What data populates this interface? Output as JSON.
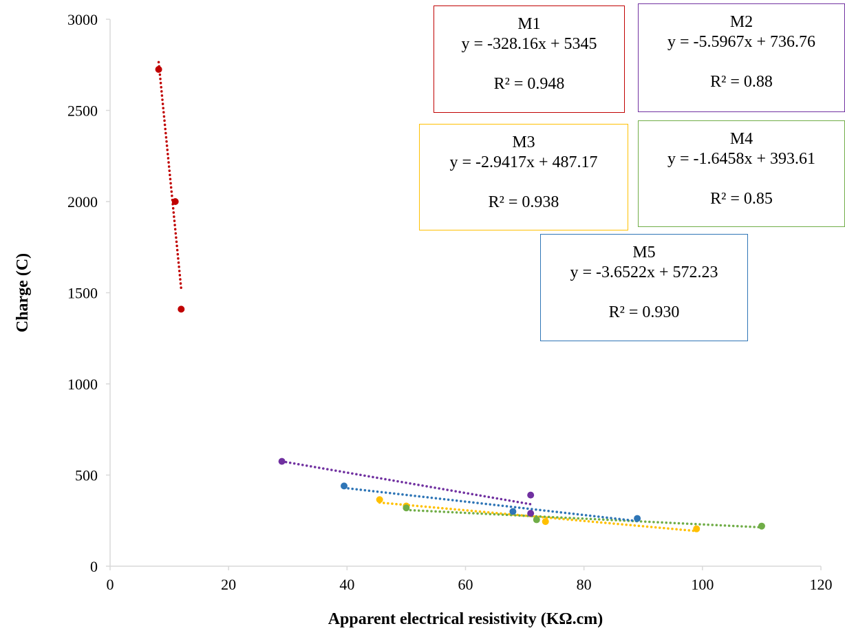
{
  "chart_data": {
    "type": "scatter",
    "title": "",
    "xlabel": "Apparent electrical resistivity (KΩ.cm)",
    "ylabel": "Charge  (C)",
    "xlim": [
      0,
      120
    ],
    "ylim": [
      0,
      3000
    ],
    "xticks": [
      "0",
      "20",
      "40",
      "60",
      "80",
      "100",
      "120"
    ],
    "yticks": [
      "0",
      "500",
      "1000",
      "1500",
      "2000",
      "2500",
      "3000"
    ],
    "grid": false,
    "legend": "none",
    "trendline": "dotted linear",
    "series": [
      {
        "id": "M1",
        "color": "#c00000",
        "points": [
          [
            8.2,
            2725
          ],
          [
            11,
            2000
          ],
          [
            12,
            1410
          ]
        ]
      },
      {
        "id": "M2",
        "color": "#7030a0",
        "points": [
          [
            29,
            575
          ],
          [
            71,
            390
          ],
          [
            71,
            290
          ]
        ]
      },
      {
        "id": "M3",
        "color": "#ffc000",
        "points": [
          [
            45.5,
            365
          ],
          [
            50,
            330
          ],
          [
            73.5,
            245
          ],
          [
            99,
            205
          ]
        ]
      },
      {
        "id": "M4",
        "color": "#70ad47",
        "points": [
          [
            50,
            320
          ],
          [
            72,
            255
          ],
          [
            110,
            220
          ]
        ]
      },
      {
        "id": "M5",
        "color": "#2e75b6",
        "points": [
          [
            39.5,
            440
          ],
          [
            68,
            300
          ],
          [
            89,
            262
          ]
        ]
      }
    ],
    "annotations": [
      {
        "series": "M1",
        "name": "M1",
        "equation": "y = -328.16x + 5345",
        "r2": "R² = 0.948",
        "border": "#c00000"
      },
      {
        "series": "M2",
        "name": "M2",
        "equation": "y = -5.5967x + 736.76",
        "r2": "R² = 0.88",
        "border": "#7030a0"
      },
      {
        "series": "M3",
        "name": "M3",
        "equation": "y = -2.9417x + 487.17",
        "r2": "R² = 0.938",
        "border": "#ffc000"
      },
      {
        "series": "M4",
        "name": "M4",
        "equation": "y = -1.6458x + 393.61",
        "r2": "R² = 0.85",
        "border": "#70ad47"
      },
      {
        "series": "M5",
        "name": "M5",
        "equation": "y = -3.6522x + 572.23",
        "r2": "R² = 0.930",
        "border": "#2e75b6"
      }
    ]
  }
}
